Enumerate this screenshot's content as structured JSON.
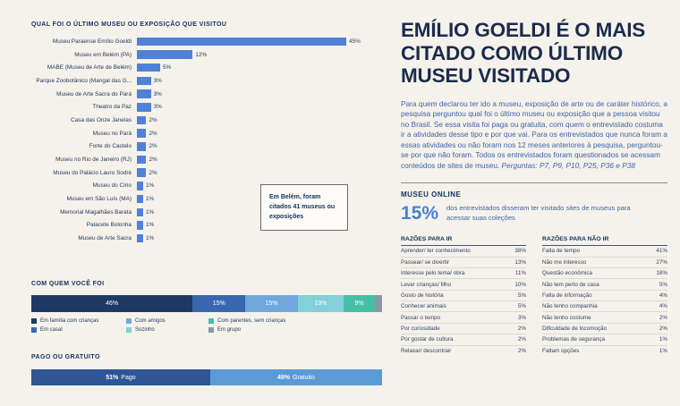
{
  "chart_data": [
    {
      "type": "bar",
      "orientation": "horizontal",
      "title": "QUAL FOI O ÚLTIMO MUSEU OU EXPOSIÇÃO QUE VISITOU",
      "unit": "%",
      "categories": [
        "Museu Paraense Emílio Goeldi",
        "Museu em Belém (PA)",
        "MABE (Museu de Arte de Belém)",
        "Parque Zoobotânico (Mangal das G...",
        "Museu de Arte Sacra do Pará",
        "Theatro da Paz",
        "Casa das Onze Janelas",
        "Museu no Pará",
        "Forte do Castelo",
        "Museu no Rio de Janeiro (RJ)",
        "Museu do Palácio Lauro Sodré",
        "Museu do Círio",
        "Museu em São Luís (MA)",
        "Memorial Magalhães Barata",
        "Palacete Bolonha",
        "Museu de Arte Sacra"
      ],
      "values": [
        45,
        12,
        5,
        3,
        3,
        3,
        2,
        2,
        2,
        2,
        2,
        1,
        1,
        1,
        1,
        1
      ],
      "bar_color": "#4f81d8",
      "annotation": "Em Belém, foram citados 41 museus ou exposições"
    },
    {
      "type": "bar",
      "subtype": "stacked",
      "title": "COM QUEM VOCÊ FOI",
      "unit": "%",
      "legend_position": "bottom",
      "series": [
        {
          "name": "Em família com crianças",
          "value": 46,
          "label": "46%",
          "color": "#1f3864"
        },
        {
          "name": "Em casal",
          "value": 15,
          "label": "15%",
          "color": "#3a68b0"
        },
        {
          "name": "Com amigos",
          "value": 15,
          "label": "15%",
          "color": "#6fa8dc"
        },
        {
          "name": "Sozinho",
          "value": 13,
          "label": "13%",
          "color": "#82d0d8"
        },
        {
          "name": "Com parentes, sem crianças",
          "value": 9,
          "label": "9%",
          "color": "#45c0a5"
        },
        {
          "name": "Em grupo",
          "value": 2,
          "label": "",
          "color": "#8a98a6"
        }
      ]
    },
    {
      "type": "bar",
      "subtype": "stacked",
      "title": "PAGO OU GRATUITO",
      "unit": "%",
      "series": [
        {
          "name": "Pago",
          "value": 51,
          "label": "51%",
          "color": "#2e5696"
        },
        {
          "name": "Gratuito",
          "value": 49,
          "label": "49%",
          "color": "#5b9bd5"
        }
      ]
    },
    {
      "type": "table",
      "title": "RAZÕES PARA IR",
      "rows": [
        {
          "label": "Aprender/ ter conhecimento",
          "value": "38%"
        },
        {
          "label": "Passear/ se divertir",
          "value": "13%"
        },
        {
          "label": "Interesse pelo tema/ obra",
          "value": "11%"
        },
        {
          "label": "Levar crianças/ filho",
          "value": "10%"
        },
        {
          "label": "Gosto de história",
          "value": "5%"
        },
        {
          "label": "Conhecer animais",
          "value": "5%"
        },
        {
          "label": "Passar o tempo",
          "value": "3%"
        },
        {
          "label": "Por curiosidade",
          "value": "2%"
        },
        {
          "label": "Por gostar de cultura",
          "value": "2%"
        },
        {
          "label": "Relaxar/ descontrair",
          "value": "2%"
        }
      ]
    },
    {
      "type": "table",
      "title": "RAZÕES PARA NÃO IR",
      "rows": [
        {
          "label": "Falta de tempo",
          "value": "41%"
        },
        {
          "label": "Não me interesso",
          "value": "27%"
        },
        {
          "label": "Questão econômica",
          "value": "18%"
        },
        {
          "label": "Não tem perto de casa",
          "value": "5%"
        },
        {
          "label": "Falta de informação",
          "value": "4%"
        },
        {
          "label": "Não tenho companhia",
          "value": "4%"
        },
        {
          "label": "Não tenho costume",
          "value": "2%"
        },
        {
          "label": "Dificuldade de locomoção",
          "value": "2%"
        },
        {
          "label": "Problemas de segurança",
          "value": "1%"
        },
        {
          "label": "Faltam opções",
          "value": "1%"
        }
      ]
    }
  ],
  "right": {
    "headline": "EMÍLIO GOELDI É O MAIS CITADO COMO ÚLTIMO MUSEU VISITADO",
    "body": "Para quem declarou ter ido a museu, exposição de arte ou de caráter histórico, a pesquisa perguntou qual foi o último museu ou exposição que a pessoa visitou no Brasil. Se essa visita foi paga ou gratuita, com quem o entrevistado costuma ir a atividades desse tipo e por que vai. Para os entrevistados que nunca foram a essas atividades ou não foram nos 12 meses anteriores à pesquisa, perguntou-se por que não foram. Todos os entrevistados foram questionados se acessam conteúdos de sites de museu.",
    "questions_note": "Perguntas: P7, P9, P10, P25, P36 e P38",
    "museu_online": {
      "title": "MUSEU ONLINE",
      "stat": "15%",
      "text": "dos entrevistados disseram ter visitado sites de museus para acessar suas coleções"
    }
  },
  "colors": {
    "background": "#f5f2eb",
    "accent_blue": "#4f81d8",
    "navy": "#12305e",
    "body_blue": "#3c63ad"
  }
}
